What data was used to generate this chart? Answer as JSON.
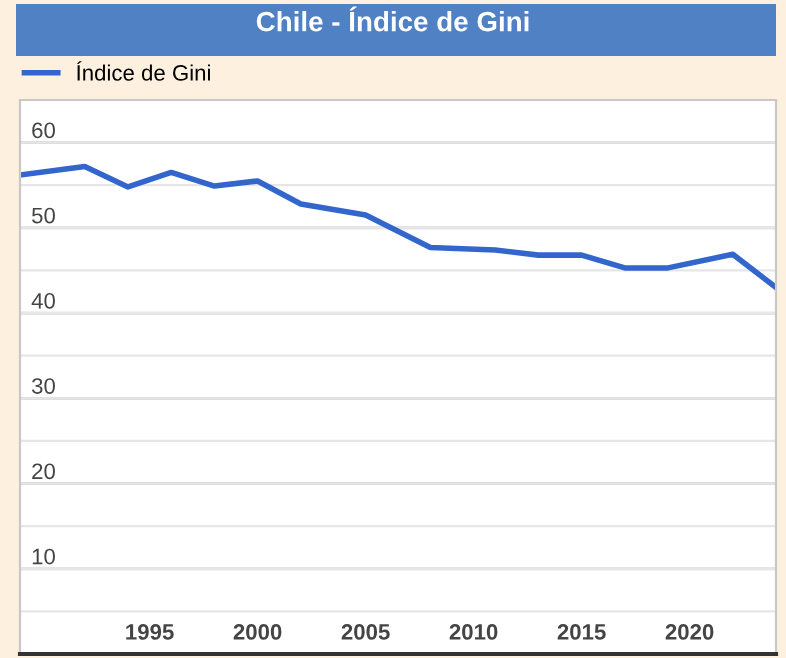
{
  "chart_data": {
    "type": "line",
    "title": "Chile - Índice de Gini",
    "x": [
      1989,
      1992,
      1994,
      1996,
      1998,
      2000,
      2002,
      2005,
      2008,
      2011,
      2013,
      2015,
      2017,
      2019,
      2022,
      2024
    ],
    "series": [
      {
        "name": "Índice de Gini",
        "color": "#3366cc",
        "values": [
          56.2,
          57.2,
          54.8,
          56.5,
          54.9,
          55.5,
          52.8,
          51.5,
          47.7,
          47.4,
          46.8,
          46.8,
          45.3,
          45.3,
          46.9,
          43.0
        ]
      }
    ],
    "xlim": [
      1989,
      2024
    ],
    "xticks": [
      1995,
      2000,
      2005,
      2010,
      2015,
      2020
    ],
    "ylim": [
      0,
      65
    ],
    "yticks": [
      {
        "value": 5,
        "label": null
      },
      10,
      {
        "value": 15,
        "label": null
      },
      20,
      {
        "value": 25,
        "label": null
      },
      30,
      {
        "value": 35,
        "label": null
      },
      40,
      {
        "value": 45,
        "label": null
      },
      50,
      {
        "value": 55,
        "label": null
      },
      60
    ],
    "grid": "y",
    "legend": "top left",
    "marker": "none",
    "line_style": "solid"
  }
}
